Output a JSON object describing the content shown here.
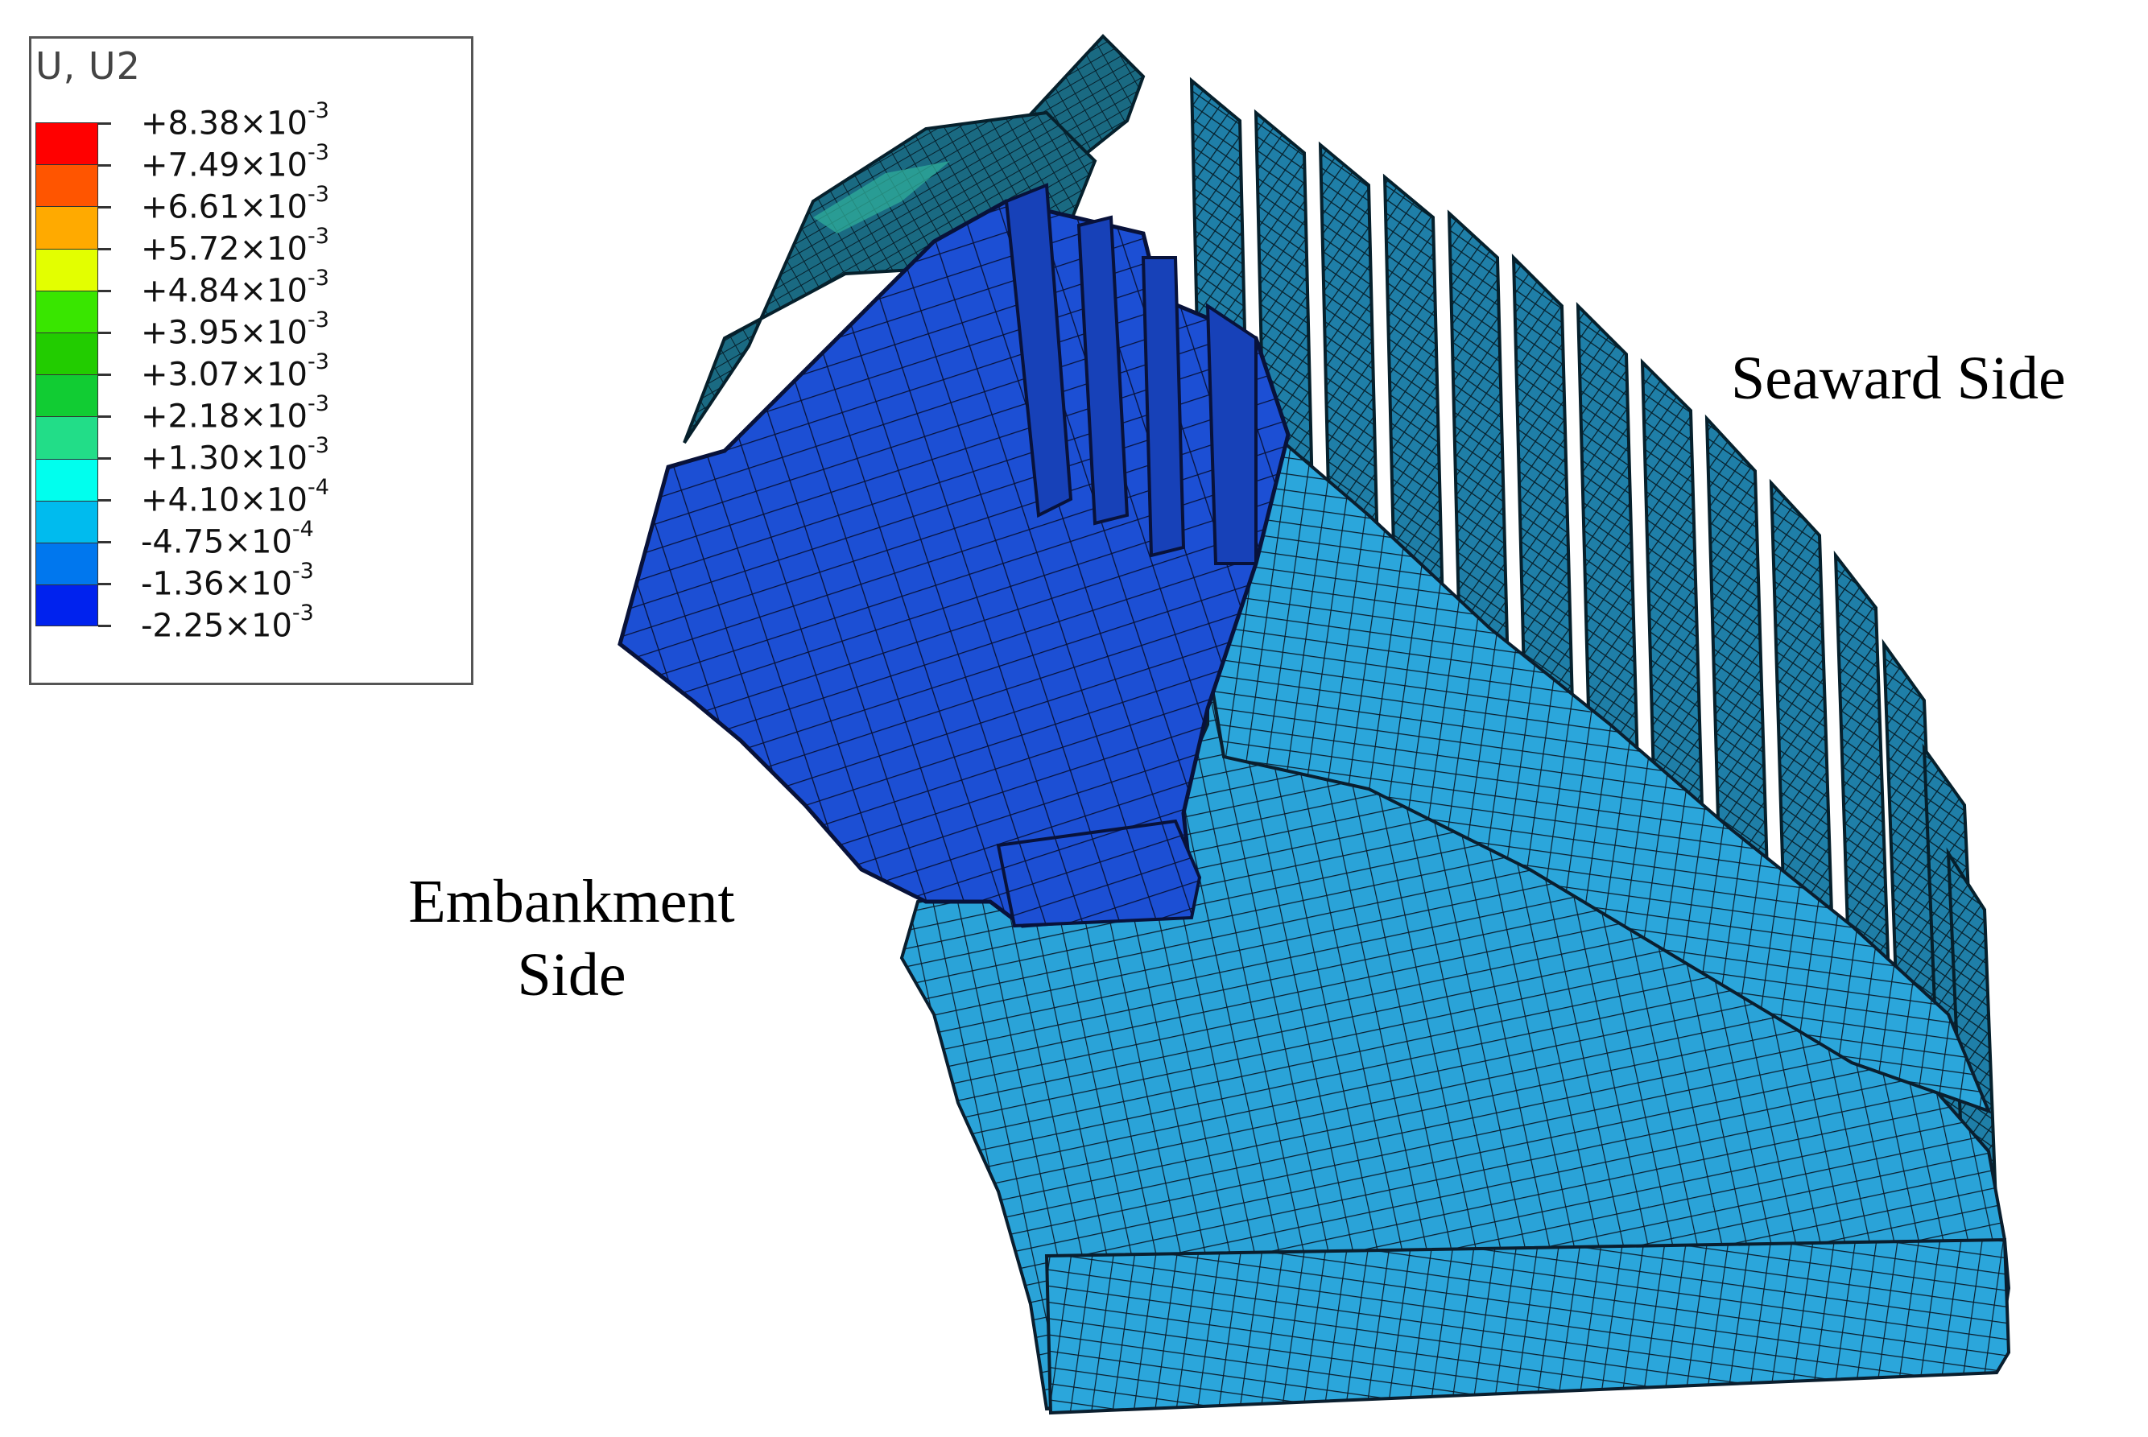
{
  "legend": {
    "title": "U, U2",
    "entries": [
      {
        "mantissa": "+8.38",
        "exp": "-3",
        "color": "#ff0000"
      },
      {
        "mantissa": "+7.49",
        "exp": "-3",
        "color": "#ff5500"
      },
      {
        "mantissa": "+6.61",
        "exp": "-3",
        "color": "#ffaa00"
      },
      {
        "mantissa": "+5.72",
        "exp": "-3",
        "color": "#e3ff00"
      },
      {
        "mantissa": "+4.84",
        "exp": "-3",
        "color": "#39e600"
      },
      {
        "mantissa": "+3.95",
        "exp": "-3",
        "color": "#22cc00"
      },
      {
        "mantissa": "+3.07",
        "exp": "-3",
        "color": "#11cc33"
      },
      {
        "mantissa": "+2.18",
        "exp": "-3",
        "color": "#22dd88"
      },
      {
        "mantissa": "+1.30",
        "exp": "-3",
        "color": "#00ffee"
      },
      {
        "mantissa": "+4.10",
        "exp": "-4",
        "color": "#00bbee"
      },
      {
        "mantissa": "-4.75",
        "exp": "-4",
        "color": "#0077ee"
      },
      {
        "mantissa": "-1.36",
        "exp": "-3",
        "color": "#0022ee"
      },
      {
        "mantissa": "-2.25",
        "exp": "-3",
        "color": null
      }
    ],
    "multiply_sign": "×10"
  },
  "labels": {
    "seaward": "Seaward Side",
    "embankment_line1": "Embankment",
    "embankment_line2": "Side"
  },
  "colors": {
    "light_blue": "#2aa3d8",
    "dark_blue": "#1c4fd4",
    "mesh_line": "#0a1e2e",
    "teal_top": "#3fbdd4"
  }
}
